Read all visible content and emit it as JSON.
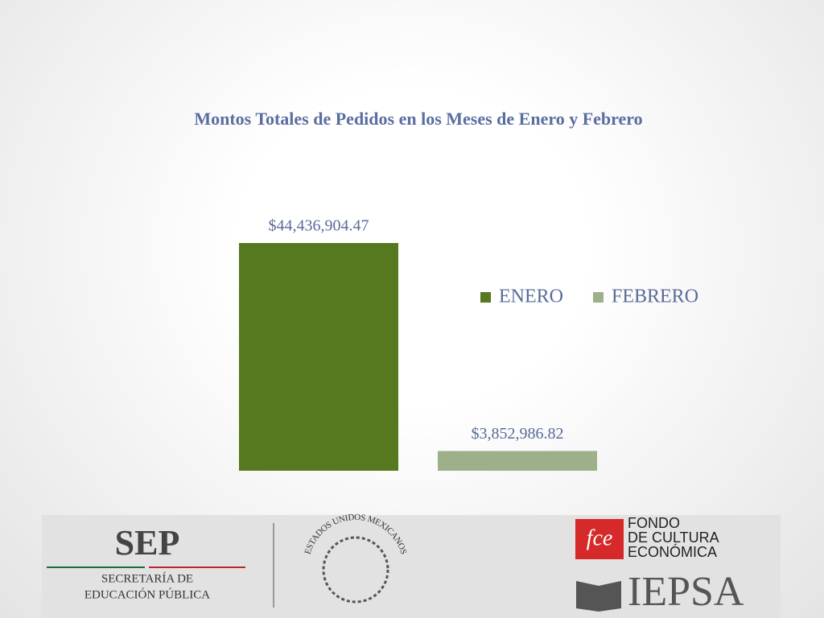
{
  "chart_data": {
    "type": "bar",
    "title": "Montos Totales de Pedidos en los Meses de Enero y Febrero",
    "categories": [
      null
    ],
    "series": [
      {
        "name": "ENERO",
        "color": "#56781e",
        "values": [
          44436904.47
        ],
        "value_labels": [
          "$44,436,904.47"
        ]
      },
      {
        "name": "FEBRERO",
        "color": "#9eb08a",
        "values": [
          3852986.82
        ],
        "value_labels": [
          "$3,852,986.82"
        ]
      }
    ],
    "legend": "right"
  },
  "footer": {
    "sep": "SEP",
    "sep_lines": [
      "SECRETARÍA DE",
      "EDUCACIÓN PÚBLICA"
    ],
    "emblem": "ESTADOS UNIDOS MEXICANOS",
    "fce_mark": "fce",
    "fce_lines": [
      "FONDO",
      "DE CULTURA",
      "ECONÓMICA"
    ],
    "iepsa": "IEPSA"
  }
}
